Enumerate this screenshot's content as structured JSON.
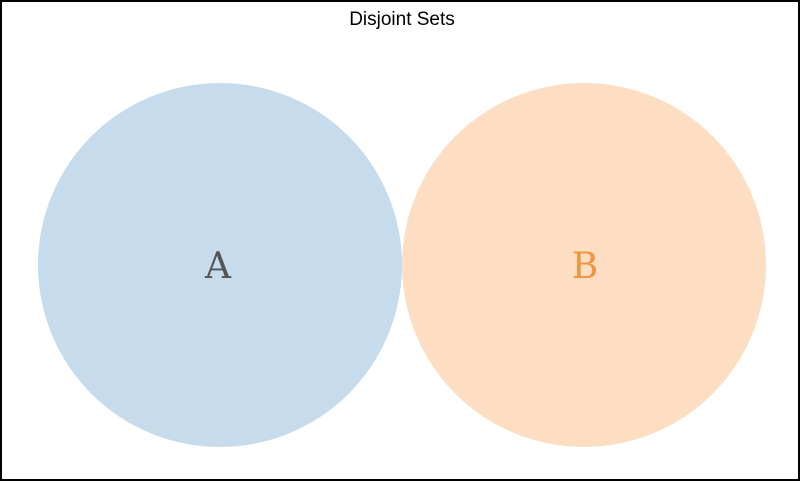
{
  "diagram": {
    "title": "Disjoint Sets",
    "sets": [
      {
        "label": "A",
        "fill": "#c6dbeb",
        "label_color": "#555555"
      },
      {
        "label": "B",
        "fill": "#fddec2",
        "label_color": "#f0953e"
      }
    ]
  }
}
